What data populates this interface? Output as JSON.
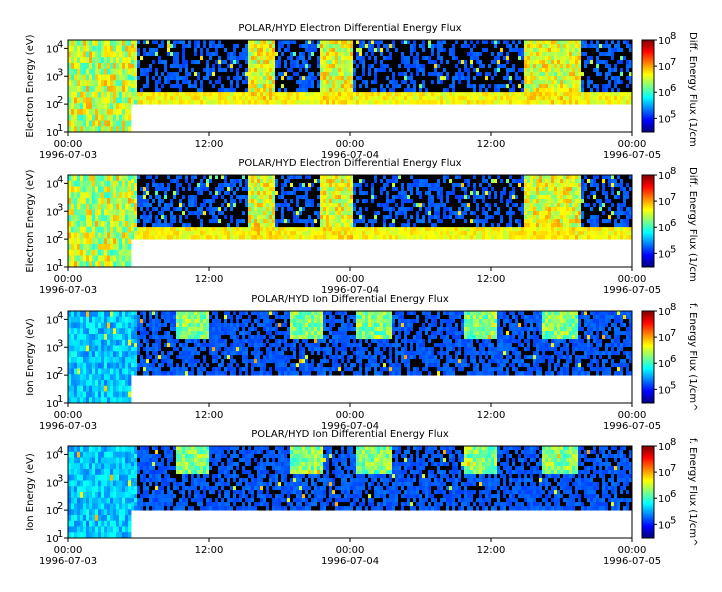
{
  "chart_data": [
    {
      "type": "heatmap",
      "title": "POLAR/HYD  Electron Differential Energy Flux",
      "ylabel": "Electron Energy (eV)",
      "yscale": "log",
      "ylim": [
        10,
        20000
      ],
      "y_ticks": [
        "10",
        "10",
        "10",
        "10"
      ],
      "y_tick_exps": [
        "1",
        "2",
        "3",
        "4"
      ],
      "x_ticks": [
        {
          "time": "00:00",
          "date": "1996-07-03"
        },
        {
          "time": "12:00",
          "date": ""
        },
        {
          "time": "00:00",
          "date": "1996-07-04"
        },
        {
          "time": "12:00",
          "date": ""
        },
        {
          "time": "00:00",
          "date": "1996-07-05"
        }
      ],
      "xlim": [
        "1996-07-03 00:00",
        "1996-07-05 00:00"
      ],
      "colorbar": {
        "label": "Diff. Energy Flux (1/cm",
        "scale": "log",
        "range": [
          30000,
          100000000
        ],
        "ticks": [
          "10",
          "10",
          "10",
          "10"
        ],
        "tick_exps": [
          "5",
          "6",
          "7",
          "8"
        ]
      },
      "species": "electron"
    },
    {
      "type": "heatmap",
      "title": "POLAR/HYD  Electron Differential Energy Flux",
      "ylabel": "Electron Energy (eV)",
      "yscale": "log",
      "ylim": [
        10,
        20000
      ],
      "y_ticks": [
        "10",
        "10",
        "10",
        "10"
      ],
      "y_tick_exps": [
        "1",
        "2",
        "3",
        "4"
      ],
      "x_ticks": [
        {
          "time": "00:00",
          "date": "1996-07-03"
        },
        {
          "time": "12:00",
          "date": ""
        },
        {
          "time": "00:00",
          "date": "1996-07-04"
        },
        {
          "time": "12:00",
          "date": ""
        },
        {
          "time": "00:00",
          "date": "1996-07-05"
        }
      ],
      "xlim": [
        "1996-07-03 00:00",
        "1996-07-05 00:00"
      ],
      "colorbar": {
        "label": "Diff. Energy Flux (1/cm",
        "scale": "log",
        "range": [
          30000,
          100000000
        ],
        "ticks": [
          "10",
          "10",
          "10",
          "10"
        ],
        "tick_exps": [
          "5",
          "6",
          "7",
          "8"
        ]
      },
      "species": "electron"
    },
    {
      "type": "heatmap",
      "title": "POLAR/HYD  Ion Differential Energy Flux",
      "ylabel": "Ion Energy (eV)",
      "yscale": "log",
      "ylim": [
        10,
        20000
      ],
      "y_ticks": [
        "10",
        "10",
        "10",
        "10"
      ],
      "y_tick_exps": [
        "1",
        "2",
        "3",
        "4"
      ],
      "x_ticks": [
        {
          "time": "00:00",
          "date": "1996-07-03"
        },
        {
          "time": "12:00",
          "date": ""
        },
        {
          "time": "00:00",
          "date": "1996-07-04"
        },
        {
          "time": "12:00",
          "date": ""
        },
        {
          "time": "00:00",
          "date": "1996-07-05"
        }
      ],
      "xlim": [
        "1996-07-03 00:00",
        "1996-07-05 00:00"
      ],
      "colorbar": {
        "label": "f. Energy Flux (1/cm^",
        "scale": "log",
        "range": [
          30000,
          100000000
        ],
        "ticks": [
          "10",
          "10",
          "10",
          "10"
        ],
        "tick_exps": [
          "5",
          "6",
          "7",
          "8"
        ]
      },
      "species": "ion"
    },
    {
      "type": "heatmap",
      "title": "POLAR/HYD  Ion Differential Energy Flux",
      "ylabel": "Ion Energy (eV)",
      "yscale": "log",
      "ylim": [
        10,
        20000
      ],
      "y_ticks": [
        "10",
        "10",
        "10",
        "10"
      ],
      "y_tick_exps": [
        "1",
        "2",
        "3",
        "4"
      ],
      "x_ticks": [
        {
          "time": "00:00",
          "date": "1996-07-03"
        },
        {
          "time": "12:00",
          "date": ""
        },
        {
          "time": "00:00",
          "date": "1996-07-04"
        },
        {
          "time": "12:00",
          "date": ""
        },
        {
          "time": "00:00",
          "date": "1996-07-05"
        }
      ],
      "xlim": [
        "1996-07-03 00:00",
        "1996-07-05 00:00"
      ],
      "colorbar": {
        "label": "f. Energy Flux (1/cm^",
        "scale": "log",
        "range": [
          30000,
          100000000
        ],
        "ticks": [
          "10",
          "10",
          "10",
          "10"
        ],
        "tick_exps": [
          "5",
          "6",
          "7",
          "8"
        ]
      },
      "species": "ion"
    }
  ],
  "colors": {
    "background": "#ffffff",
    "plot_background": "#000000",
    "colormap": [
      "#00007f",
      "#0000ff",
      "#007fff",
      "#00ffff",
      "#7fff7f",
      "#ffff00",
      "#ff7f00",
      "#ff0000",
      "#7f0000"
    ]
  }
}
